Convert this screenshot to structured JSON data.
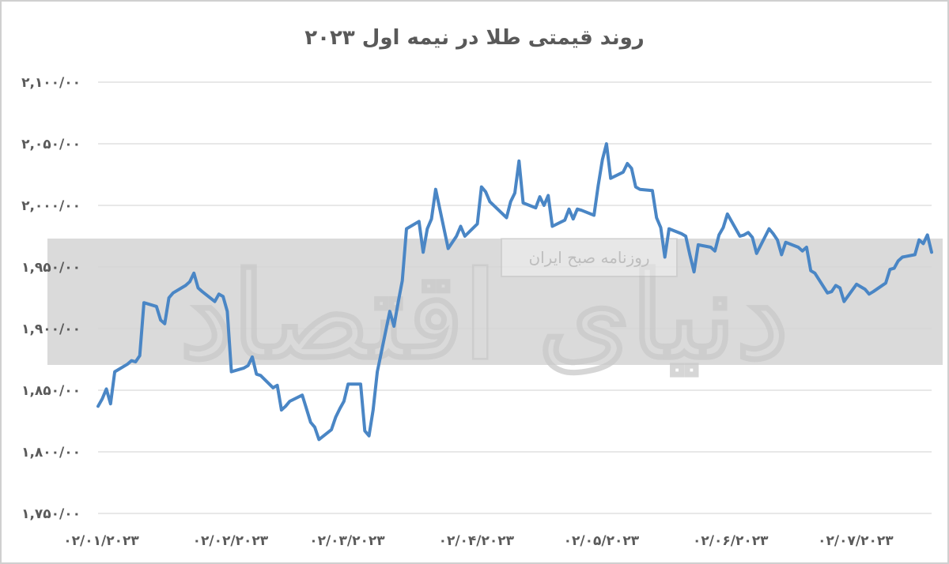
{
  "chart_data": {
    "type": "line",
    "title": "روند قیمتی طلا در نیمه اول ۲۰۲۳",
    "xlabel": "",
    "ylabel": "",
    "ylim": [
      1750,
      2100
    ],
    "y_ticks": [
      1750,
      1800,
      1850,
      1900,
      1950,
      2000,
      2050,
      2100
    ],
    "y_tick_labels": [
      "۱,۷۵۰/۰۰",
      "۱,۸۰۰/۰۰",
      "۱,۸۵۰/۰۰",
      "۱,۹۰۰/۰۰",
      "۱,۹۵۰/۰۰",
      "۲,۰۰۰/۰۰",
      "۲,۰۵۰/۰۰",
      "۲,۱۰۰/۰۰"
    ],
    "x_range": [
      "2023-01-02",
      "2023-07-21"
    ],
    "x_ticks": [
      "2023-01-02",
      "2023-02-02",
      "2023-03-02",
      "2023-04-02",
      "2023-05-02",
      "2023-06-02",
      "2023-07-02"
    ],
    "x_tick_labels": [
      "۰۲/۰۱/۲۰۲۳",
      "۰۲/۰۲/۲۰۲۳",
      "۰۲/۰۳/۲۰۲۳",
      "۰۲/۰۴/۲۰۲۳",
      "۰۲/۰۵/۲۰۲۳",
      "۰۲/۰۶/۲۰۲۳",
      "۰۲/۰۷/۲۰۲۳"
    ],
    "grid": true,
    "series": [
      {
        "color": "#4a86c5",
        "points": [
          [
            "2023-01-02",
            1837
          ],
          [
            "2023-01-03",
            1843
          ],
          [
            "2023-01-04",
            1851
          ],
          [
            "2023-01-05",
            1839
          ],
          [
            "2023-01-06",
            1865
          ],
          [
            "2023-01-09",
            1871
          ],
          [
            "2023-01-10",
            1874
          ],
          [
            "2023-01-11",
            1873
          ],
          [
            "2023-01-12",
            1878
          ],
          [
            "2023-01-13",
            1921
          ],
          [
            "2023-01-16",
            1918
          ],
          [
            "2023-01-17",
            1907
          ],
          [
            "2023-01-18",
            1904
          ],
          [
            "2023-01-19",
            1925
          ],
          [
            "2023-01-20",
            1929
          ],
          [
            "2023-01-23",
            1935
          ],
          [
            "2023-01-24",
            1938
          ],
          [
            "2023-01-25",
            1945
          ],
          [
            "2023-01-26",
            1933
          ],
          [
            "2023-01-27",
            1930
          ],
          [
            "2023-01-30",
            1922
          ],
          [
            "2023-01-31",
            1928
          ],
          [
            "2023-02-01",
            1926
          ],
          [
            "2023-02-02",
            1914
          ],
          [
            "2023-02-03",
            1865
          ],
          [
            "2023-02-06",
            1868
          ],
          [
            "2023-02-07",
            1870
          ],
          [
            "2023-02-08",
            1877
          ],
          [
            "2023-02-09",
            1863
          ],
          [
            "2023-02-10",
            1862
          ],
          [
            "2023-02-13",
            1852
          ],
          [
            "2023-02-14",
            1854
          ],
          [
            "2023-02-15",
            1834
          ],
          [
            "2023-02-16",
            1837
          ],
          [
            "2023-02-17",
            1841
          ],
          [
            "2023-02-20",
            1846
          ],
          [
            "2023-02-21",
            1835
          ],
          [
            "2023-02-22",
            1824
          ],
          [
            "2023-02-23",
            1820
          ],
          [
            "2023-02-24",
            1810
          ],
          [
            "2023-02-27",
            1818
          ],
          [
            "2023-02-28",
            1828
          ],
          [
            "2023-03-01",
            1835
          ],
          [
            "2023-03-02",
            1841
          ],
          [
            "2023-03-03",
            1855
          ],
          [
            "2023-03-06",
            1855
          ],
          [
            "2023-03-07",
            1817
          ],
          [
            "2023-03-08",
            1813
          ],
          [
            "2023-03-09",
            1834
          ],
          [
            "2023-03-10",
            1865
          ],
          [
            "2023-03-13",
            1914
          ],
          [
            "2023-03-14",
            1902
          ],
          [
            "2023-03-15",
            1921
          ],
          [
            "2023-03-16",
            1939
          ],
          [
            "2023-03-17",
            1981
          ],
          [
            "2023-03-20",
            1987
          ],
          [
            "2023-03-21",
            1962
          ],
          [
            "2023-03-22",
            1981
          ],
          [
            "2023-03-23",
            1989
          ],
          [
            "2023-03-24",
            2013
          ],
          [
            "2023-03-27",
            1965
          ],
          [
            "2023-03-28",
            1970
          ],
          [
            "2023-03-29",
            1975
          ],
          [
            "2023-03-30",
            1983
          ],
          [
            "2023-03-31",
            1975
          ],
          [
            "2023-04-03",
            1985
          ],
          [
            "2023-04-04",
            2015
          ],
          [
            "2023-04-05",
            2011
          ],
          [
            "2023-04-06",
            2003
          ],
          [
            "2023-04-10",
            1990
          ],
          [
            "2023-04-11",
            2003
          ],
          [
            "2023-04-12",
            2010
          ],
          [
            "2023-04-13",
            2036
          ],
          [
            "2023-04-14",
            2002
          ],
          [
            "2023-04-17",
            1998
          ],
          [
            "2023-04-18",
            2007
          ],
          [
            "2023-04-19",
            2000
          ],
          [
            "2023-04-20",
            2008
          ],
          [
            "2023-04-21",
            1983
          ],
          [
            "2023-04-24",
            1988
          ],
          [
            "2023-04-25",
            1997
          ],
          [
            "2023-04-26",
            1989
          ],
          [
            "2023-04-27",
            1997
          ],
          [
            "2023-04-28",
            1996
          ],
          [
            "2023-05-01",
            1992
          ],
          [
            "2023-05-02",
            2016
          ],
          [
            "2023-05-03",
            2037
          ],
          [
            "2023-05-04",
            2050
          ],
          [
            "2023-05-05",
            2022
          ],
          [
            "2023-05-08",
            2027
          ],
          [
            "2023-05-09",
            2034
          ],
          [
            "2023-05-10",
            2030
          ],
          [
            "2023-05-11",
            2015
          ],
          [
            "2023-05-12",
            2013
          ],
          [
            "2023-05-15",
            2012
          ],
          [
            "2023-05-16",
            1990
          ],
          [
            "2023-05-17",
            1982
          ],
          [
            "2023-05-18",
            1958
          ],
          [
            "2023-05-19",
            1981
          ],
          [
            "2023-05-22",
            1977
          ],
          [
            "2023-05-23",
            1975
          ],
          [
            "2023-05-24",
            1960
          ],
          [
            "2023-05-25",
            1946
          ],
          [
            "2023-05-26",
            1968
          ],
          [
            "2023-05-29",
            1966
          ],
          [
            "2023-05-30",
            1963
          ],
          [
            "2023-05-31",
            1976
          ],
          [
            "2023-06-01",
            1982
          ],
          [
            "2023-06-02",
            1993
          ],
          [
            "2023-06-05",
            1975
          ],
          [
            "2023-06-06",
            1976
          ],
          [
            "2023-06-07",
            1978
          ],
          [
            "2023-06-08",
            1974
          ],
          [
            "2023-06-09",
            1961
          ],
          [
            "2023-06-12",
            1981
          ],
          [
            "2023-06-13",
            1977
          ],
          [
            "2023-06-14",
            1972
          ],
          [
            "2023-06-15",
            1960
          ],
          [
            "2023-06-16",
            1970
          ],
          [
            "2023-06-19",
            1966
          ],
          [
            "2023-06-20",
            1963
          ],
          [
            "2023-06-21",
            1966
          ],
          [
            "2023-06-22",
            1947
          ],
          [
            "2023-06-23",
            1945
          ],
          [
            "2023-06-26",
            1929
          ],
          [
            "2023-06-27",
            1930
          ],
          [
            "2023-06-28",
            1935
          ],
          [
            "2023-06-29",
            1933
          ],
          [
            "2023-06-30",
            1922
          ],
          [
            "2023-07-03",
            1936
          ],
          [
            "2023-07-04",
            1934
          ],
          [
            "2023-07-05",
            1932
          ],
          [
            "2023-07-06",
            1928
          ],
          [
            "2023-07-07",
            1930
          ],
          [
            "2023-07-10",
            1937
          ],
          [
            "2023-07-11",
            1948
          ],
          [
            "2023-07-12",
            1949
          ],
          [
            "2023-07-13",
            1955
          ],
          [
            "2023-07-14",
            1958
          ],
          [
            "2023-07-17",
            1960
          ],
          [
            "2023-07-18",
            1972
          ],
          [
            "2023-07-19",
            1969
          ],
          [
            "2023-07-20",
            1976
          ],
          [
            "2023-07-21",
            1962
          ]
        ]
      }
    ]
  },
  "watermark": {
    "main_text": "دنیای اقتصاد",
    "label_text": "روزنامه صبح ایران"
  }
}
